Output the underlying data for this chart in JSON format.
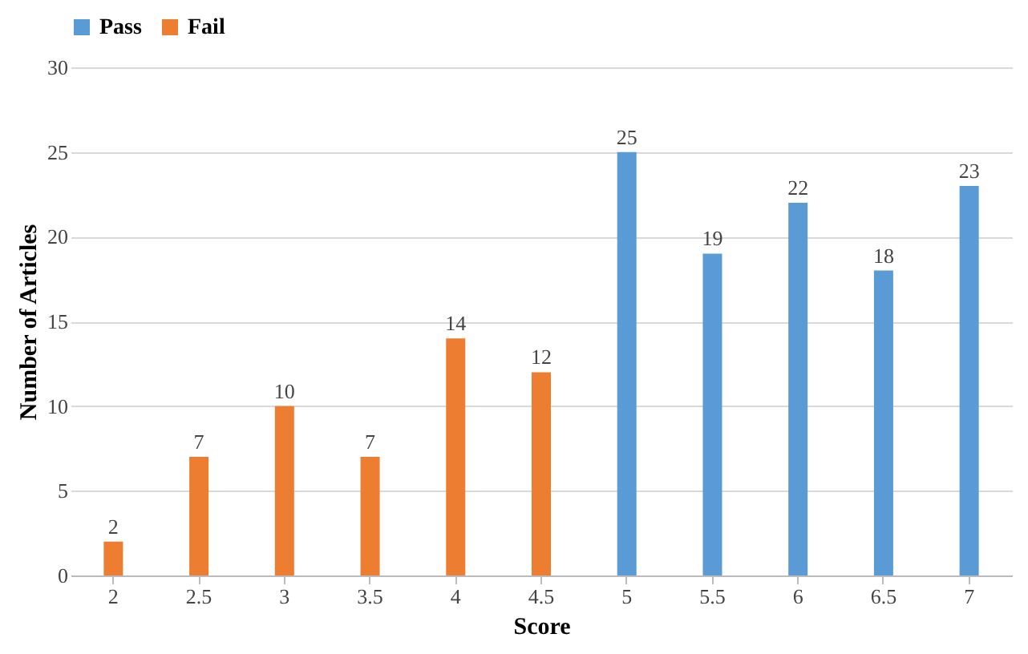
{
  "chart_data": {
    "type": "bar",
    "xlabel": "Score",
    "ylabel": "Number of Articles",
    "categories": [
      "2",
      "2.5",
      "3",
      "3.5",
      "4",
      "4.5",
      "5",
      "5.5",
      "6",
      "6.5",
      "7"
    ],
    "series": [
      {
        "name": "Pass",
        "color": "#5b9bd5",
        "values": [
          null,
          null,
          null,
          null,
          null,
          null,
          25,
          19,
          22,
          18,
          23
        ]
      },
      {
        "name": "Fail",
        "color": "#ed7d31",
        "values": [
          2,
          7,
          10,
          7,
          14,
          12,
          null,
          null,
          null,
          null,
          null
        ]
      }
    ],
    "ylim": [
      0,
      30
    ],
    "yticks": [
      0,
      5,
      10,
      15,
      20,
      25,
      30
    ],
    "grid": "y",
    "legend": "top",
    "data_labels": true
  }
}
